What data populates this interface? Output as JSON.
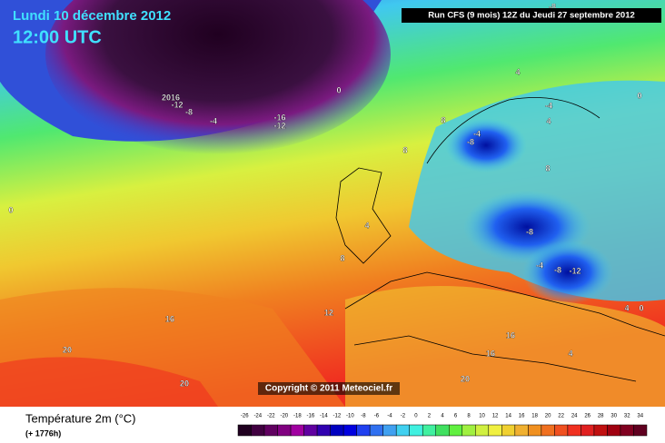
{
  "header": {
    "date": "Lundi 10 décembre 2012",
    "time": "12:00 UTC",
    "run": "Run CFS (9 mois) 12Z du Jeudi 27 septembre 2012"
  },
  "copyright": "Copyright © 2011 Meteociel.fr",
  "footer": {
    "title": "Température 2m (°C)",
    "lead": "(+ 1776h)"
  },
  "map": {
    "contour_labels": [
      "-8",
      "2016",
      "-12",
      "-8",
      "-4",
      "-16",
      "-12",
      "0",
      "4",
      "8",
      "8",
      "-4",
      "-8",
      "-4",
      "0",
      "4",
      "8",
      "-8",
      "-4",
      "-8",
      "-12",
      "12",
      "8",
      "4",
      "16",
      "20",
      "20",
      "20",
      "16",
      "16",
      "0",
      "4",
      "0",
      "4"
    ]
  },
  "legend": {
    "ticks": [
      -26,
      -24,
      -22,
      -20,
      -18,
      -16,
      -14,
      -12,
      -10,
      -8,
      -6,
      -4,
      -2,
      0,
      2,
      4,
      6,
      8,
      10,
      12,
      14,
      16,
      18,
      20,
      22,
      24,
      26,
      28,
      30,
      32,
      34
    ],
    "colors": [
      "#200020",
      "#400040",
      "#600060",
      "#800080",
      "#a000a0",
      "#6000a0",
      "#3000b0",
      "#0000c0",
      "#0000e0",
      "#2040f0",
      "#3070f0",
      "#40a0f0",
      "#40d0f0",
      "#40f0e0",
      "#40f0a0",
      "#40e060",
      "#60f040",
      "#a0f040",
      "#d0f040",
      "#f0f040",
      "#f0d030",
      "#f0b030",
      "#f09020",
      "#f07020",
      "#f05020",
      "#f03020",
      "#e02020",
      "#c01010",
      "#a00010",
      "#800020",
      "#600020"
    ]
  }
}
